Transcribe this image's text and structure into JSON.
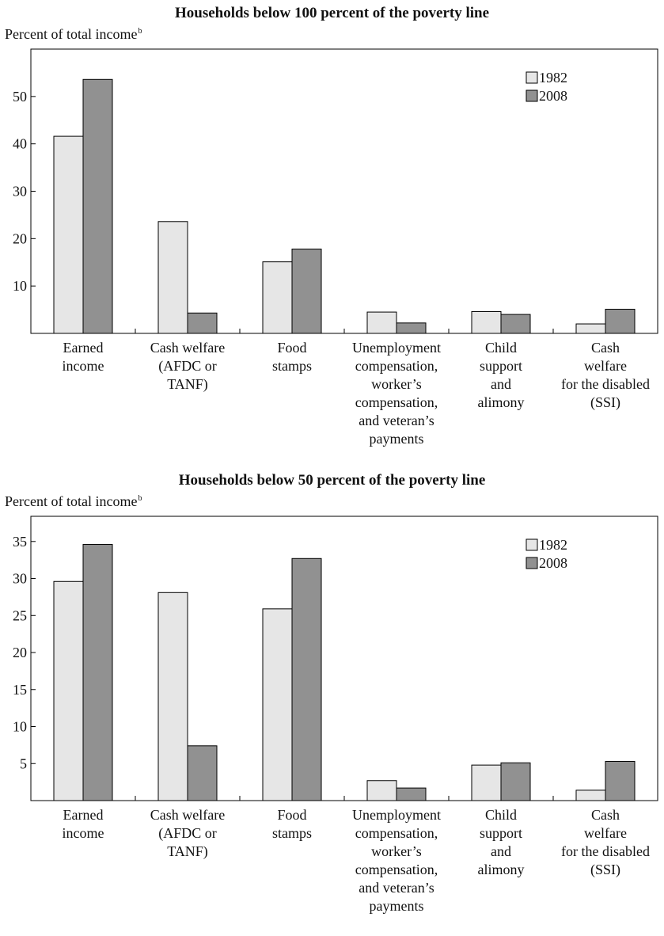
{
  "chart_data": [
    {
      "type": "bar",
      "title": "Households below 100 percent of the poverty line",
      "ylabel": "Percent of total income",
      "ylabel_sup": "b",
      "ylim": [
        0,
        60
      ],
      "yticks": [
        10,
        20,
        30,
        40,
        50
      ],
      "legend_position": "top-right",
      "grid": false,
      "categories": [
        [
          "Earned",
          "income"
        ],
        [
          "Cash welfare",
          "(AFDC or",
          "TANF)"
        ],
        [
          "Food",
          "stamps"
        ],
        [
          "Unemployment",
          "compensation,",
          "worker’s",
          "compensation,",
          "and veteran’s",
          "payments"
        ],
        [
          "Child",
          "support",
          "and",
          "alimony"
        ],
        [
          "Cash",
          "welfare",
          "for the disabled",
          "(SSI)"
        ]
      ],
      "series": [
        {
          "name": "1982",
          "color": "#e6e6e6",
          "values": [
            41.6,
            23.6,
            15.1,
            4.5,
            4.6,
            2.0
          ]
        },
        {
          "name": "2008",
          "color": "#919191",
          "values": [
            53.6,
            4.3,
            17.8,
            2.2,
            4.0,
            5.1
          ]
        }
      ]
    },
    {
      "type": "bar",
      "title": "Households below 50 percent of the poverty line",
      "ylabel": "Percent of total income",
      "ylabel_sup": "b",
      "ylim": [
        0,
        38.4
      ],
      "yticks": [
        5,
        10,
        15,
        20,
        25,
        30,
        35
      ],
      "legend_position": "top-right",
      "grid": false,
      "categories": [
        [
          "Earned",
          "income"
        ],
        [
          "Cash welfare",
          "(AFDC or",
          "TANF)"
        ],
        [
          "Food",
          "stamps"
        ],
        [
          "Unemployment",
          "compensation,",
          "worker’s",
          "compensation,",
          "and veteran’s",
          "payments"
        ],
        [
          "Child",
          "support",
          "and",
          "alimony"
        ],
        [
          "Cash",
          "welfare",
          "for the disabled",
          "(SSI)"
        ]
      ],
      "series": [
        {
          "name": "1982",
          "color": "#e6e6e6",
          "values": [
            29.6,
            28.1,
            25.9,
            2.7,
            4.8,
            1.4
          ]
        },
        {
          "name": "2008",
          "color": "#919191",
          "values": [
            34.6,
            7.4,
            32.7,
            1.7,
            5.1,
            5.3
          ]
        }
      ]
    }
  ]
}
